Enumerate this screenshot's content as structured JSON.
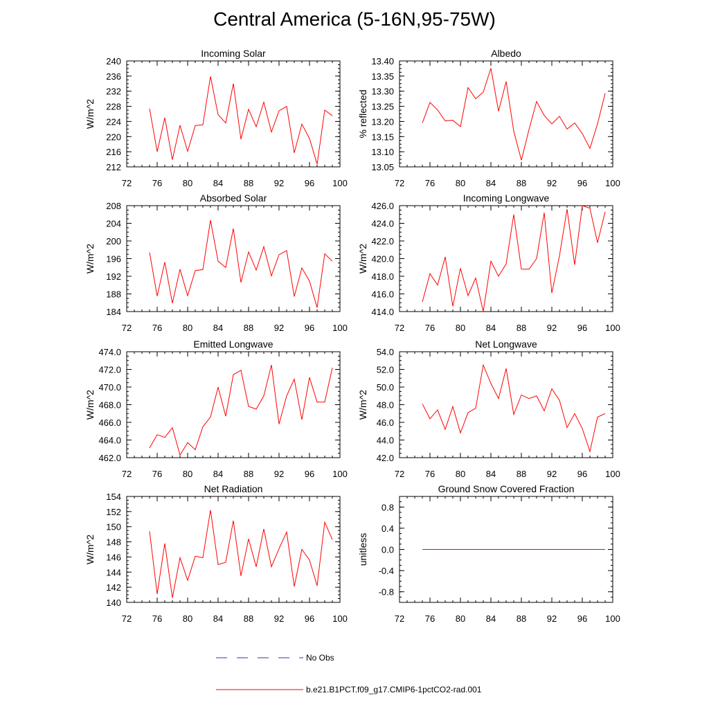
{
  "figure_title": "Central America (5-16N,95-75W)",
  "colors": {
    "model_line": "#ff0000",
    "obs_line": "#3333aa",
    "axis": "#000000"
  },
  "legend": {
    "obs_label": "No Obs",
    "model_label": "b.e21.B1PCT.f09_g17.CMIP6-1pctCO2-rad.001"
  },
  "chart_data": [
    {
      "type": "line",
      "title": "Incoming Solar",
      "ylabel": "W/m^2",
      "xlim": [
        72,
        100
      ],
      "ylim": [
        212,
        240
      ],
      "xticks": [
        "72",
        "76",
        "80",
        "84",
        "88",
        "92",
        "96",
        "100"
      ],
      "yticks": [
        "212",
        "216",
        "220",
        "224",
        "228",
        "232",
        "236",
        "240"
      ],
      "x": [
        75,
        76,
        77,
        78,
        79,
        80,
        81,
        82,
        83,
        84,
        85,
        86,
        87,
        88,
        89,
        90,
        91,
        92,
        93,
        94,
        95,
        96,
        97,
        98,
        99
      ],
      "values": [
        227.4,
        216.0,
        225.0,
        213.9,
        223.0,
        216.1,
        222.9,
        223.1,
        235.9,
        225.8,
        223.6,
        234.0,
        219.3,
        227.2,
        222.6,
        229.1,
        221.2,
        226.8,
        228.0,
        215.7,
        223.3,
        219.5,
        212.7,
        227.0,
        225.5
      ]
    },
    {
      "type": "line",
      "title": "Albedo",
      "ylabel": "% reflected",
      "xlim": [
        72,
        100
      ],
      "ylim": [
        13.05,
        13.4
      ],
      "xticks": [
        "72",
        "76",
        "80",
        "84",
        "88",
        "92",
        "96",
        "100"
      ],
      "yticks": [
        "13.05",
        "13.10",
        "13.15",
        "13.20",
        "13.25",
        "13.30",
        "13.35",
        "13.40"
      ],
      "x": [
        75,
        76,
        77,
        78,
        79,
        80,
        81,
        82,
        83,
        84,
        85,
        86,
        87,
        88,
        89,
        90,
        91,
        92,
        93,
        94,
        95,
        96,
        97,
        98,
        99
      ],
      "values": [
        13.195,
        13.263,
        13.238,
        13.202,
        13.204,
        13.183,
        13.312,
        13.275,
        13.297,
        13.376,
        13.234,
        13.332,
        13.168,
        13.072,
        13.173,
        13.266,
        13.22,
        13.192,
        13.217,
        13.175,
        13.195,
        13.16,
        13.111,
        13.192,
        13.293
      ]
    },
    {
      "type": "line",
      "title": "Absorbed Solar",
      "ylabel": "W/m^2",
      "xlim": [
        72,
        100
      ],
      "ylim": [
        184,
        208
      ],
      "xticks": [
        "72",
        "76",
        "80",
        "84",
        "88",
        "92",
        "96",
        "100"
      ],
      "yticks": [
        "184",
        "188",
        "192",
        "196",
        "200",
        "204",
        "208"
      ],
      "x": [
        75,
        76,
        77,
        78,
        79,
        80,
        81,
        82,
        83,
        84,
        85,
        86,
        87,
        88,
        89,
        90,
        91,
        92,
        93,
        94,
        95,
        96,
        97,
        98,
        99
      ],
      "values": [
        197.4,
        187.5,
        195.2,
        185.9,
        193.6,
        187.6,
        193.3,
        193.5,
        204.7,
        195.4,
        194.0,
        202.8,
        190.6,
        197.5,
        193.4,
        198.7,
        192.1,
        196.9,
        197.8,
        187.4,
        193.9,
        190.9,
        184.9,
        197.1,
        195.4
      ]
    },
    {
      "type": "line",
      "title": "Incoming Longwave",
      "ylabel": "W/m^2",
      "xlim": [
        72,
        100
      ],
      "ylim": [
        414.0,
        426.0
      ],
      "xticks": [
        "72",
        "76",
        "80",
        "84",
        "88",
        "92",
        "96",
        "100"
      ],
      "yticks": [
        "414.0",
        "416.0",
        "418.0",
        "420.0",
        "422.0",
        "424.0",
        "426.0"
      ],
      "x": [
        75,
        76,
        77,
        78,
        79,
        80,
        81,
        82,
        83,
        84,
        85,
        86,
        87,
        88,
        89,
        90,
        91,
        92,
        93,
        94,
        95,
        96,
        97,
        98,
        99
      ],
      "values": [
        415.1,
        418.3,
        417.0,
        420.2,
        414.6,
        418.9,
        415.8,
        417.8,
        414.0,
        419.7,
        418.0,
        419.4,
        425.0,
        418.8,
        418.8,
        420.0,
        425.2,
        416.1,
        420.3,
        425.6,
        419.3,
        426.0,
        425.7,
        421.8,
        425.3
      ]
    },
    {
      "type": "line",
      "title": "Emitted Longwave",
      "ylabel": "W/m^2",
      "xlim": [
        72,
        100
      ],
      "ylim": [
        462.0,
        474.0
      ],
      "xticks": [
        "72",
        "76",
        "80",
        "84",
        "88",
        "92",
        "96",
        "100"
      ],
      "yticks": [
        "462.0",
        "464.0",
        "466.0",
        "468.0",
        "470.0",
        "472.0",
        "474.0"
      ],
      "x": [
        75,
        76,
        77,
        78,
        79,
        80,
        81,
        82,
        83,
        84,
        85,
        86,
        87,
        88,
        89,
        90,
        91,
        92,
        93,
        94,
        95,
        96,
        97,
        98,
        99
      ],
      "values": [
        463.1,
        464.6,
        464.3,
        465.4,
        462.3,
        463.7,
        462.9,
        465.5,
        466.6,
        470.0,
        466.7,
        471.4,
        471.9,
        467.8,
        467.5,
        469.0,
        472.5,
        465.8,
        469.0,
        470.9,
        466.3,
        471.1,
        468.3,
        468.3,
        472.2
      ]
    },
    {
      "type": "line",
      "title": "Net Longwave",
      "ylabel": "W/m^2",
      "xlim": [
        72,
        100
      ],
      "ylim": [
        42.0,
        54.0
      ],
      "xticks": [
        "72",
        "76",
        "80",
        "84",
        "88",
        "92",
        "96",
        "100"
      ],
      "yticks": [
        "42.0",
        "44.0",
        "46.0",
        "48.0",
        "50.0",
        "52.0",
        "54.0"
      ],
      "x": [
        75,
        76,
        77,
        78,
        79,
        80,
        81,
        82,
        83,
        84,
        85,
        86,
        87,
        88,
        89,
        90,
        91,
        92,
        93,
        94,
        95,
        96,
        97,
        98,
        99
      ],
      "values": [
        48.1,
        46.4,
        47.4,
        45.2,
        47.8,
        44.8,
        47.1,
        47.6,
        52.5,
        50.4,
        48.7,
        52.1,
        46.9,
        49.1,
        48.7,
        49.0,
        47.3,
        49.8,
        48.5,
        45.4,
        47.0,
        45.3,
        42.7,
        46.6,
        47.0
      ]
    },
    {
      "type": "line",
      "title": "Net Radiation",
      "ylabel": "W/m^2",
      "xlim": [
        72,
        100
      ],
      "ylim": [
        140,
        154
      ],
      "xticks": [
        "72",
        "76",
        "80",
        "84",
        "88",
        "92",
        "96",
        "100"
      ],
      "yticks": [
        "140",
        "142",
        "144",
        "146",
        "148",
        "150",
        "152",
        "154"
      ],
      "x": [
        75,
        76,
        77,
        78,
        79,
        80,
        81,
        82,
        83,
        84,
        85,
        86,
        87,
        88,
        89,
        90,
        91,
        92,
        93,
        94,
        95,
        96,
        97,
        98,
        99
      ],
      "values": [
        149.4,
        141.1,
        147.8,
        140.6,
        145.9,
        142.9,
        146.1,
        145.9,
        152.2,
        145.0,
        145.3,
        150.8,
        143.5,
        148.4,
        144.7,
        149.7,
        144.7,
        147.1,
        149.3,
        142.1,
        147.0,
        145.6,
        142.2,
        150.6,
        148.3
      ]
    },
    {
      "type": "line",
      "title": "Ground Snow Covered Fraction",
      "ylabel": "unitless",
      "xlim": [
        72,
        100
      ],
      "ylim": [
        -1.0,
        1.0
      ],
      "xticks": [
        "72",
        "76",
        "80",
        "84",
        "88",
        "92",
        "96",
        "100"
      ],
      "yticks": [
        "-0.8",
        "-0.4",
        "0.0",
        "0.4",
        "0.8"
      ],
      "ytick_values": [
        -0.8,
        -0.4,
        0.0,
        0.4,
        0.8
      ],
      "x": [
        75,
        76,
        77,
        78,
        79,
        80,
        81,
        82,
        83,
        84,
        85,
        86,
        87,
        88,
        89,
        90,
        91,
        92,
        93,
        94,
        95,
        96,
        97,
        98,
        99
      ],
      "values": [
        0,
        0,
        0,
        0,
        0,
        0,
        0,
        0,
        0,
        0,
        0,
        0,
        0,
        0,
        0,
        0,
        0,
        0,
        0,
        0,
        0,
        0,
        0,
        0,
        0
      ]
    }
  ]
}
